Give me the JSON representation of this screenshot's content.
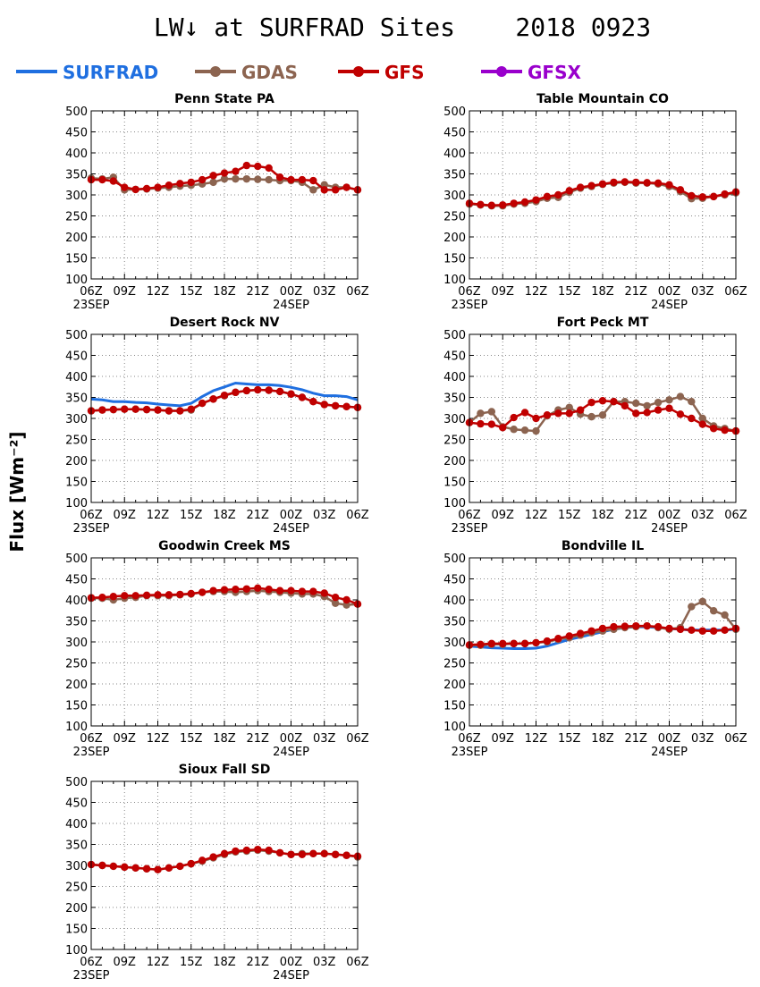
{
  "figure": {
    "title": "LW↓ at SURFRAD Sites    2018 0923",
    "ylabel": "Flux [Wm⁻²]",
    "legend": [
      {
        "name": "SURFRAD",
        "color": "#1f6fe0",
        "marker": false
      },
      {
        "name": "GDAS",
        "color": "#8c6450",
        "marker": true
      },
      {
        "name": "GFS",
        "color": "#c00000",
        "marker": true
      },
      {
        "name": "GFSX",
        "color": "#9900cc",
        "marker": true
      }
    ],
    "xticks": [
      "06Z",
      "09Z",
      "12Z",
      "15Z",
      "18Z",
      "21Z",
      "00Z",
      "03Z",
      "06Z"
    ],
    "xdates": [
      {
        "hour": 0,
        "label": "23SEP"
      },
      {
        "hour": 18,
        "label": "24SEP"
      }
    ],
    "yticks": [
      100,
      150,
      200,
      250,
      300,
      350,
      400,
      450,
      500
    ]
  },
  "chart_data": [
    {
      "type": "line",
      "title": "Penn State PA",
      "x_unit": "hours since 06Z 23SEP",
      "ylim": [
        100,
        500
      ],
      "xlim": [
        0,
        24
      ],
      "grid": true,
      "series": [
        {
          "name": "GDAS",
          "x": [
            0,
            1,
            2,
            3,
            4,
            5,
            6,
            7,
            8,
            9,
            10,
            11,
            12,
            13,
            14,
            15,
            16,
            17,
            18,
            19,
            20,
            21,
            22,
            23,
            24
          ],
          "values": [
            340,
            338,
            342,
            312,
            313,
            314,
            316,
            318,
            321,
            323,
            326,
            330,
            338,
            338,
            338,
            337,
            336,
            334,
            334,
            330,
            312,
            324,
            318,
            318,
            312
          ]
        },
        {
          "name": "GFS",
          "x": [
            0,
            1,
            2,
            3,
            4,
            5,
            6,
            7,
            8,
            9,
            10,
            11,
            12,
            13,
            14,
            15,
            16,
            17,
            18,
            19,
            20,
            21,
            22,
            23,
            24
          ],
          "values": [
            336,
            336,
            333,
            318,
            313,
            315,
            318,
            323,
            327,
            330,
            336,
            346,
            352,
            356,
            370,
            368,
            364,
            342,
            336,
            336,
            334,
            312,
            312,
            318,
            312
          ]
        }
      ]
    },
    {
      "type": "line",
      "title": "Table Mountain CO",
      "x_unit": "hours since 06Z 23SEP",
      "ylim": [
        100,
        500
      ],
      "xlim": [
        0,
        24
      ],
      "grid": true,
      "series": [
        {
          "name": "GDAS",
          "x": [
            0,
            1,
            2,
            3,
            4,
            5,
            6,
            7,
            8,
            9,
            10,
            11,
            12,
            13,
            14,
            15,
            16,
            17,
            18,
            19,
            20,
            21,
            22,
            23,
            24
          ],
          "values": [
            278,
            276,
            274,
            274,
            278,
            280,
            284,
            292,
            294,
            306,
            316,
            320,
            325,
            328,
            330,
            328,
            328,
            326,
            320,
            308,
            291,
            292,
            296,
            300,
            305
          ]
        },
        {
          "name": "GFS",
          "x": [
            0,
            1,
            2,
            3,
            4,
            5,
            6,
            7,
            8,
            9,
            10,
            11,
            12,
            13,
            14,
            15,
            16,
            17,
            18,
            19,
            20,
            21,
            22,
            23,
            24
          ],
          "values": [
            280,
            277,
            275,
            276,
            280,
            283,
            288,
            296,
            300,
            310,
            318,
            322,
            326,
            330,
            331,
            330,
            329,
            328,
            324,
            312,
            298,
            295,
            296,
            302,
            307
          ]
        }
      ]
    },
    {
      "type": "line",
      "title": "Desert Rock NV",
      "x_unit": "hours since 06Z 23SEP",
      "ylim": [
        100,
        500
      ],
      "xlim": [
        0,
        24
      ],
      "grid": true,
      "series": [
        {
          "name": "SURFRAD",
          "x": [
            0,
            1,
            2,
            3,
            4,
            5,
            6,
            7,
            8,
            9,
            10,
            11,
            12,
            13,
            14,
            15,
            16,
            17,
            18,
            19,
            20,
            21,
            22,
            23,
            24
          ],
          "values": [
            346,
            344,
            340,
            340,
            338,
            337,
            334,
            332,
            330,
            336,
            352,
            366,
            375,
            384,
            382,
            380,
            380,
            378,
            374,
            368,
            360,
            354,
            354,
            352,
            344
          ]
        },
        {
          "name": "GDAS",
          "x": [
            0,
            1,
            2,
            3,
            4,
            5,
            6,
            7,
            8,
            9,
            10,
            11,
            12,
            13,
            14,
            15,
            16,
            17,
            18,
            19,
            20,
            21,
            22,
            23,
            24
          ],
          "values": [
            318,
            320,
            321,
            322,
            322,
            321,
            320,
            318,
            318,
            320,
            336,
            346,
            354,
            362,
            366,
            368,
            367,
            364,
            358,
            350,
            340,
            333,
            330,
            328,
            326
          ]
        },
        {
          "name": "GFS",
          "x": [
            0,
            1,
            2,
            3,
            4,
            5,
            6,
            7,
            8,
            9,
            10,
            11,
            12,
            13,
            14,
            15,
            16,
            17,
            18,
            19,
            20,
            21,
            22,
            23,
            24
          ],
          "values": [
            318,
            320,
            321,
            322,
            322,
            321,
            320,
            318,
            318,
            322,
            336,
            346,
            355,
            362,
            366,
            368,
            367,
            364,
            358,
            350,
            340,
            333,
            330,
            328,
            326
          ]
        }
      ]
    },
    {
      "type": "line",
      "title": "Fort Peck MT",
      "x_unit": "hours since 06Z 23SEP",
      "ylim": [
        100,
        500
      ],
      "xlim": [
        0,
        24
      ],
      "grid": true,
      "series": [
        {
          "name": "GDAS",
          "x": [
            0,
            1,
            2,
            3,
            4,
            5,
            6,
            7,
            8,
            9,
            10,
            11,
            12,
            13,
            14,
            15,
            16,
            17,
            18,
            19,
            20,
            21,
            22,
            23,
            24
          ],
          "values": [
            290,
            312,
            316,
            280,
            274,
            272,
            270,
            306,
            320,
            326,
            310,
            304,
            308,
            340,
            340,
            336,
            330,
            338,
            344,
            352,
            340,
            300,
            282,
            276,
            270
          ]
        },
        {
          "name": "GFS",
          "x": [
            0,
            1,
            2,
            3,
            4,
            5,
            6,
            7,
            8,
            9,
            10,
            11,
            12,
            13,
            14,
            15,
            16,
            17,
            18,
            19,
            20,
            21,
            22,
            23,
            24
          ],
          "values": [
            290,
            287,
            286,
            278,
            302,
            314,
            300,
            308,
            312,
            312,
            320,
            338,
            342,
            340,
            330,
            312,
            314,
            320,
            324,
            310,
            300,
            286,
            276,
            272,
            270
          ]
        }
      ]
    },
    {
      "type": "line",
      "title": "Goodwin Creek MS",
      "x_unit": "hours since 06Z 23SEP",
      "ylim": [
        100,
        500
      ],
      "xlim": [
        0,
        24
      ],
      "grid": true,
      "series": [
        {
          "name": "GDAS",
          "x": [
            0,
            1,
            2,
            3,
            4,
            5,
            6,
            7,
            8,
            9,
            10,
            11,
            12,
            13,
            14,
            15,
            16,
            17,
            18,
            19,
            20,
            21,
            22,
            23,
            24
          ],
          "values": [
            404,
            404,
            400,
            404,
            406,
            410,
            410,
            410,
            412,
            414,
            418,
            420,
            420,
            418,
            420,
            422,
            420,
            418,
            416,
            414,
            414,
            408,
            392,
            388,
            390
          ]
        },
        {
          "name": "GFS",
          "x": [
            0,
            1,
            2,
            3,
            4,
            5,
            6,
            7,
            8,
            9,
            10,
            11,
            12,
            13,
            14,
            15,
            16,
            17,
            18,
            19,
            20,
            21,
            22,
            23,
            24
          ],
          "values": [
            405,
            406,
            408,
            410,
            410,
            411,
            412,
            412,
            413,
            415,
            418,
            422,
            424,
            425,
            426,
            428,
            425,
            422,
            422,
            420,
            420,
            416,
            406,
            400,
            390
          ]
        }
      ]
    },
    {
      "type": "line",
      "title": "Bondville IL",
      "x_unit": "hours since 06Z 23SEP",
      "ylim": [
        100,
        500
      ],
      "xlim": [
        0,
        24
      ],
      "grid": true,
      "series": [
        {
          "name": "SURFRAD",
          "x": [
            0,
            1,
            2,
            3,
            4,
            5,
            6,
            7,
            8,
            9,
            10,
            11,
            12,
            13,
            14,
            15,
            16,
            17,
            18,
            19,
            20,
            21,
            22,
            23,
            24
          ],
          "values": [
            290,
            288,
            286,
            285,
            284,
            284,
            285,
            290,
            298,
            306,
            312,
            318,
            324,
            330,
            334,
            336,
            336,
            334,
            332,
            330,
            328,
            328,
            328,
            328,
            330
          ]
        },
        {
          "name": "GDAS",
          "x": [
            0,
            1,
            2,
            3,
            4,
            5,
            6,
            7,
            8,
            9,
            10,
            11,
            12,
            13,
            14,
            15,
            16,
            17,
            18,
            19,
            20,
            21,
            22,
            23,
            24
          ],
          "values": [
            292,
            292,
            294,
            294,
            296,
            296,
            298,
            300,
            306,
            310,
            316,
            322,
            326,
            330,
            334,
            336,
            338,
            334,
            330,
            334,
            384,
            396,
            374,
            364,
            330
          ]
        },
        {
          "name": "GFS",
          "x": [
            0,
            1,
            2,
            3,
            4,
            5,
            6,
            7,
            8,
            9,
            10,
            11,
            12,
            13,
            14,
            15,
            16,
            17,
            18,
            19,
            20,
            21,
            22,
            23,
            24
          ],
          "values": [
            293,
            294,
            296,
            296,
            296,
            296,
            298,
            302,
            308,
            314,
            320,
            326,
            332,
            336,
            337,
            338,
            338,
            336,
            332,
            330,
            328,
            326,
            326,
            328,
            332
          ]
        }
      ]
    },
    {
      "type": "line",
      "title": "Sioux Fall SD",
      "x_unit": "hours since 06Z 23SEP",
      "ylim": [
        100,
        500
      ],
      "xlim": [
        0,
        24
      ],
      "grid": true,
      "series": [
        {
          "name": "GDAS",
          "x": [
            0,
            1,
            2,
            3,
            4,
            5,
            6,
            7,
            8,
            9,
            10,
            11,
            12,
            13,
            14,
            15,
            16,
            17,
            18,
            19,
            20,
            21,
            22,
            23,
            24
          ],
          "values": [
            302,
            300,
            298,
            296,
            294,
            292,
            290,
            294,
            298,
            304,
            310,
            318,
            326,
            332,
            334,
            336,
            334,
            330,
            326,
            328,
            328,
            328,
            326,
            324,
            320
          ]
        },
        {
          "name": "GFS",
          "x": [
            0,
            1,
            2,
            3,
            4,
            5,
            6,
            7,
            8,
            9,
            10,
            11,
            12,
            13,
            14,
            15,
            16,
            17,
            18,
            19,
            20,
            21,
            22,
            23,
            24
          ],
          "values": [
            302,
            300,
            298,
            296,
            294,
            292,
            290,
            294,
            298,
            304,
            312,
            320,
            328,
            334,
            336,
            338,
            336,
            330,
            326,
            326,
            328,
            328,
            326,
            324,
            322
          ]
        }
      ]
    }
  ]
}
